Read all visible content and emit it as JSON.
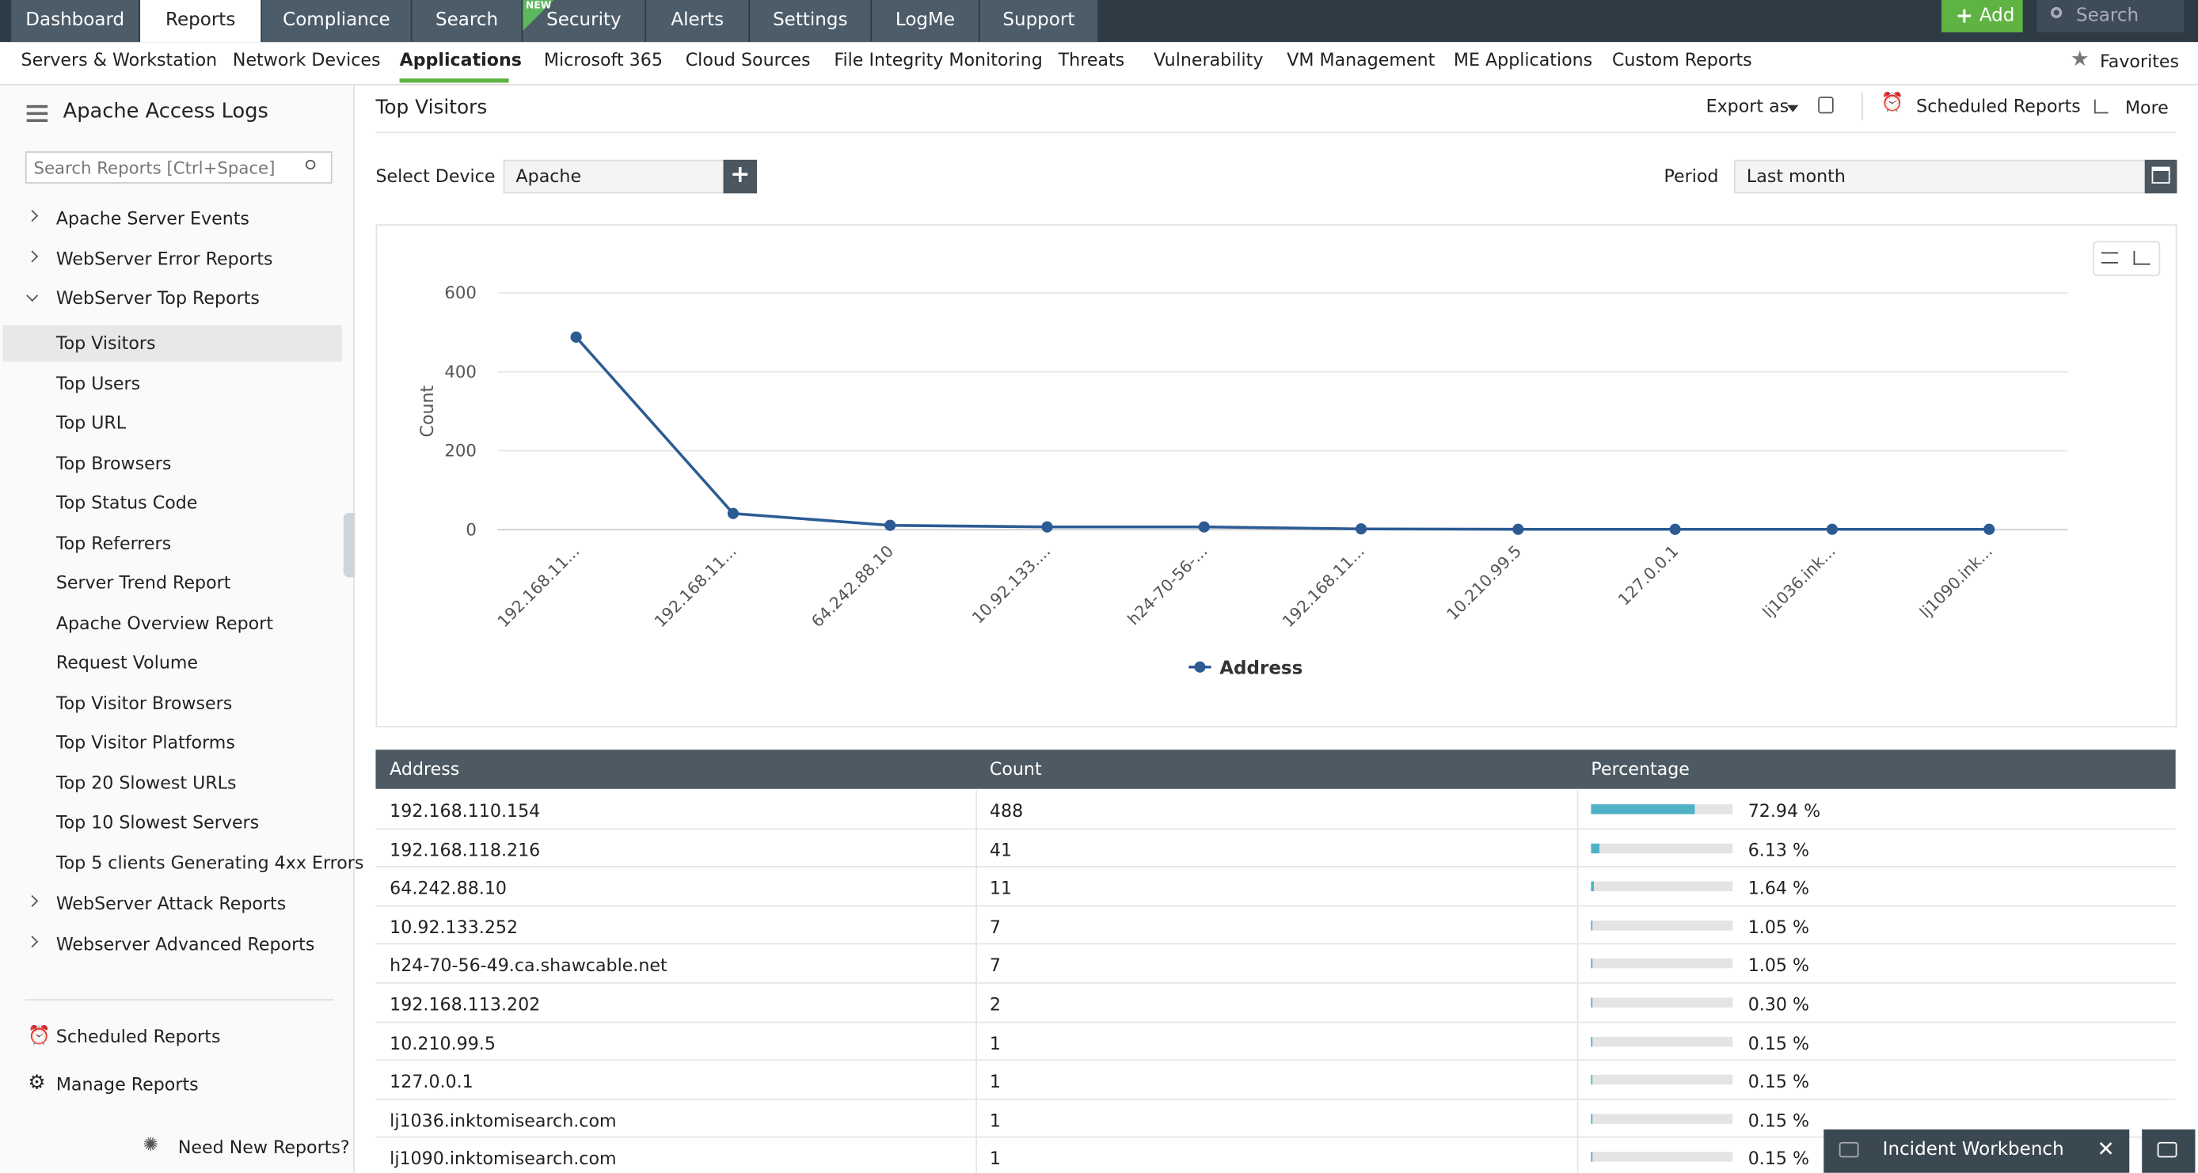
{
  "top_nav": {
    "tabs": [
      "Dashboard",
      "Reports",
      "Compliance",
      "Search",
      "Security",
      "Alerts",
      "Settings",
      "LogMe",
      "Support"
    ],
    "new_badge": "NEW",
    "add_button": "Add",
    "search_placeholder": "Search"
  },
  "sub_nav": {
    "items": [
      "Servers & Workstation",
      "Network Devices",
      "Applications",
      "Microsoft 365",
      "Cloud Sources",
      "File Integrity Monitoring",
      "Threats",
      "Vulnerability",
      "VM Management",
      "ME Applications",
      "Custom Reports"
    ],
    "favorites": "Favorites"
  },
  "sidebar": {
    "title": "Apache Access Logs",
    "search_placeholder": "Search Reports [Ctrl+Space]",
    "groups_before": [
      "Apache Server Events",
      "WebServer Error Reports"
    ],
    "open_group": "WebServer Top Reports",
    "items": [
      "Top Visitors",
      "Top Users",
      "Top URL",
      "Top Browsers",
      "Top Status Code",
      "Top Referrers",
      "Server Trend Report",
      "Apache Overview Report",
      "Request Volume",
      "Top Visitor Browsers",
      "Top Visitor Platforms",
      "Top 20 Slowest URLs",
      "Top 10 Slowest Servers",
      "Top 5 clients Generating 4xx Errors"
    ],
    "groups_after": [
      "WebServer Attack Reports",
      "Webserver Advanced Reports"
    ],
    "footer": [
      "Scheduled Reports",
      "Manage Reports"
    ],
    "need_new": "Need New Reports?"
  },
  "report": {
    "title": "Top Visitors",
    "export": "Export as",
    "scheduled": "Scheduled Reports",
    "more": "More",
    "device_label": "Select Device",
    "device": "Apache",
    "period_label": "Period",
    "period": "Last month"
  },
  "chart_data": {
    "type": "line",
    "y_label": "Count",
    "categories": [
      "192.168.11...",
      "192.168.11...",
      "64.242.88.10",
      "10.92.133....",
      "h24-70-56-...",
      "192.168.11...",
      "10.210.99.5",
      "127.0.0.1",
      "lj1036.ink...",
      "lj1090.ink..."
    ],
    "series": [
      {
        "name": "Address",
        "color": "#2c5b94",
        "values": [
          488,
          41,
          11,
          7,
          7,
          2,
          1,
          1,
          1,
          1
        ]
      }
    ],
    "ylim": [
      0,
      600
    ],
    "yticks": [
      0,
      200,
      400,
      600
    ],
    "grid": true
  },
  "table": {
    "columns": [
      "Address",
      "Count",
      "Percentage"
    ],
    "rows": [
      [
        "192.168.110.154",
        488,
        {
          "value": 72.94,
          "label": "72.94 %"
        }
      ],
      [
        "192.168.118.216",
        41,
        {
          "value": 6.13,
          "label": "6.13 %"
        }
      ],
      [
        "64.242.88.10",
        11,
        {
          "value": 1.64,
          "label": "1.64 %"
        }
      ],
      [
        "10.92.133.252",
        7,
        {
          "value": 1.05,
          "label": "1.05 %"
        }
      ],
      [
        "h24-70-56-49.ca.shawcable.net",
        7,
        {
          "value": 1.05,
          "label": "1.05 %"
        }
      ],
      [
        "192.168.113.202",
        2,
        {
          "value": 0.3,
          "label": "0.30 %"
        }
      ],
      [
        "10.210.99.5",
        1,
        {
          "value": 0.15,
          "label": "0.15 %"
        }
      ],
      [
        "127.0.0.1",
        1,
        {
          "value": 0.15,
          "label": "0.15 %"
        }
      ],
      [
        "lj1036.inktomisearch.com",
        1,
        {
          "value": 0.15,
          "label": "0.15 %"
        }
      ],
      [
        "lj1090.inktomisearch.com",
        1,
        {
          "value": 0.15,
          "label": "0.15 %"
        }
      ]
    ]
  },
  "incident": "Incident Workbench"
}
